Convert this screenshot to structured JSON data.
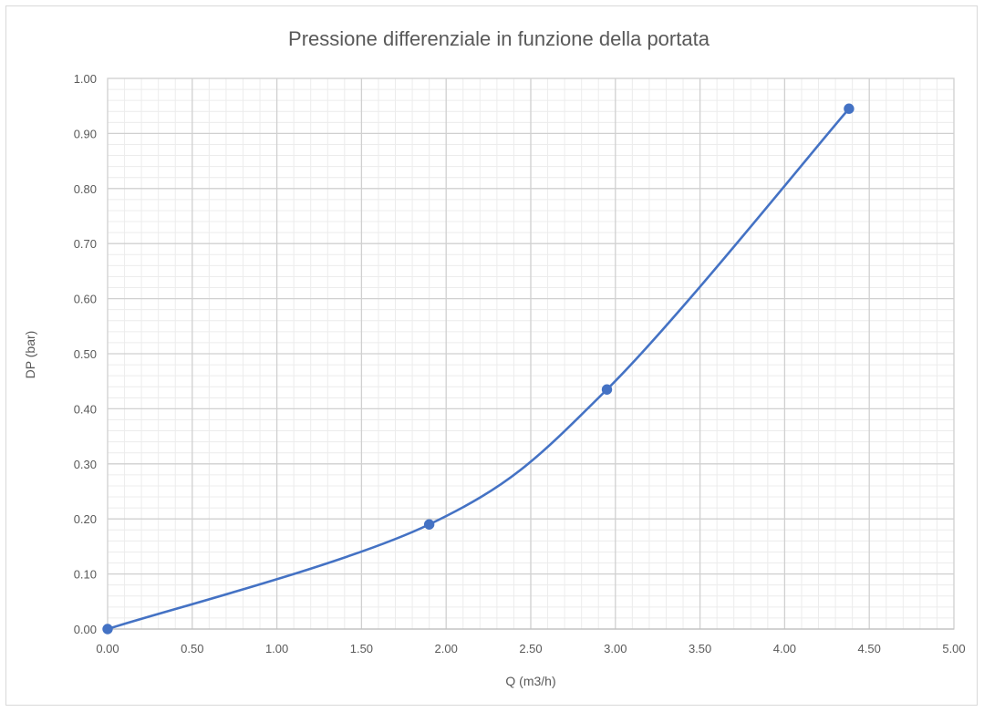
{
  "chart_data": {
    "type": "scatter",
    "title": "Pressione differenziale in funzione della portata",
    "xlabel": "Q (m3/h)",
    "ylabel": "DP (bar)",
    "xlim": [
      0,
      5
    ],
    "ylim": [
      0,
      1
    ],
    "x_ticks": [
      "0.00",
      "0.50",
      "1.00",
      "1.50",
      "2.00",
      "2.50",
      "3.00",
      "3.50",
      "4.00",
      "4.50",
      "5.00"
    ],
    "y_ticks": [
      "0.00",
      "0.10",
      "0.20",
      "0.30",
      "0.40",
      "0.50",
      "0.60",
      "0.70",
      "0.80",
      "0.90",
      "1.00"
    ],
    "grid": true,
    "minor_grid": true,
    "line_style": "smooth",
    "series": [
      {
        "color": "#4472c4",
        "points": [
          {
            "x": 0.0,
            "y": 0.0
          },
          {
            "x": 1.9,
            "y": 0.19
          },
          {
            "x": 2.95,
            "y": 0.435
          },
          {
            "x": 4.38,
            "y": 0.945
          }
        ]
      }
    ]
  }
}
